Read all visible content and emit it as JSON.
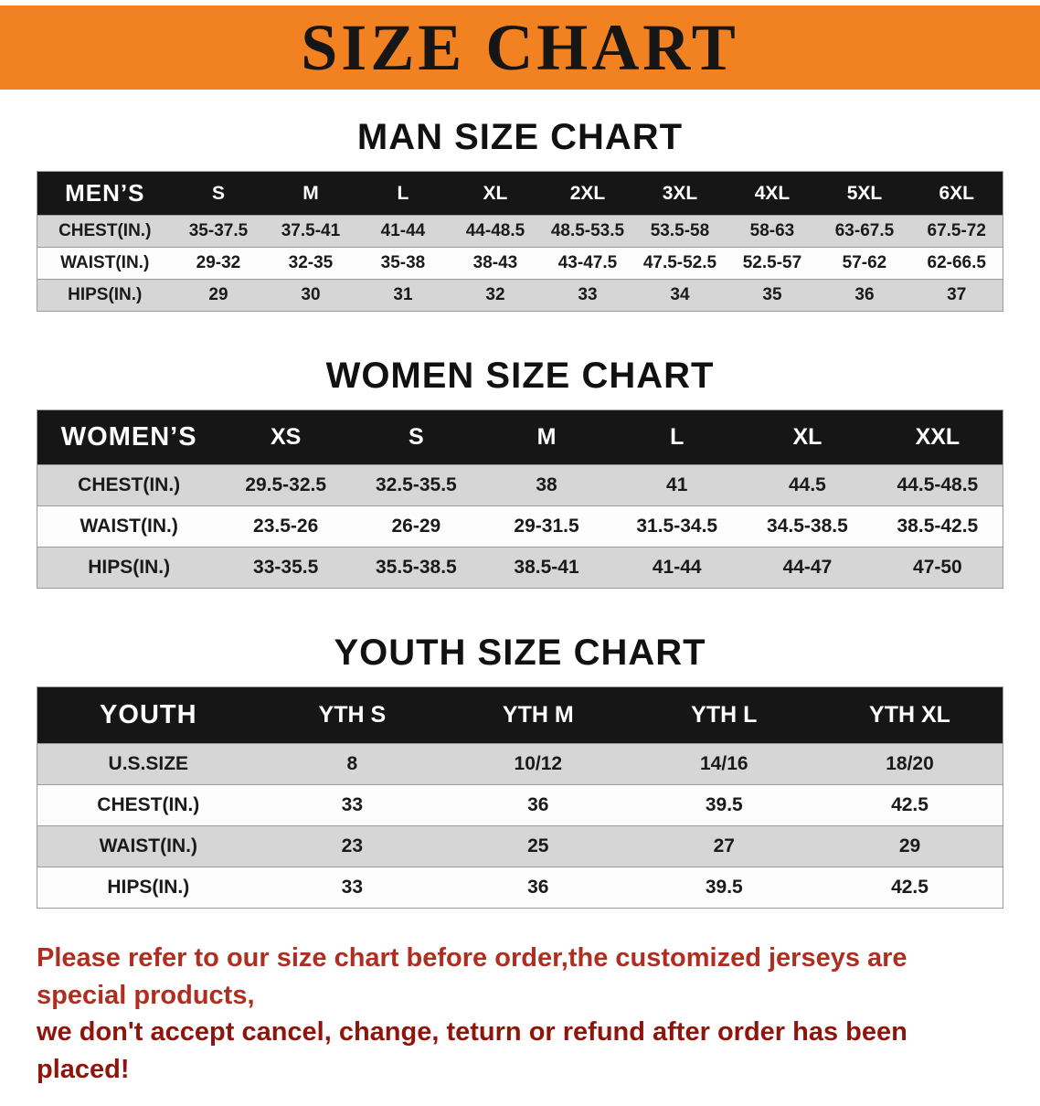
{
  "banner": {
    "title": "SIZE CHART"
  },
  "sections": [
    {
      "heading": "MAN SIZE CHART",
      "table": {
        "header": [
          "MEN’S",
          "S",
          "M",
          "L",
          "XL",
          "2XL",
          "3XL",
          "4XL",
          "5XL",
          "6XL"
        ],
        "rows": [
          {
            "label": "CHEST(IN.)",
            "values": [
              "35-37.5",
              "37.5-41",
              "41-44",
              "44-48.5",
              "48.5-53.5",
              "53.5-58",
              "58-63",
              "63-67.5",
              "67.5-72"
            ]
          },
          {
            "label": "WAIST(IN.)",
            "values": [
              "29-32",
              "32-35",
              "35-38",
              "38-43",
              "43-47.5",
              "47.5-52.5",
              "52.5-57",
              "57-62",
              "62-66.5"
            ]
          },
          {
            "label": "HIPS(IN.)",
            "values": [
              "29",
              "30",
              "31",
              "32",
              "33",
              "34",
              "35",
              "36",
              "37"
            ]
          }
        ]
      }
    },
    {
      "heading": "WOMEN SIZE CHART",
      "table": {
        "header": [
          "WOMEN’S",
          "XS",
          "S",
          "M",
          "L",
          "XL",
          "XXL"
        ],
        "rows": [
          {
            "label": "CHEST(IN.)",
            "values": [
              "29.5-32.5",
              "32.5-35.5",
              "38",
              "41",
              "44.5",
              "44.5-48.5"
            ]
          },
          {
            "label": "WAIST(IN.)",
            "values": [
              "23.5-26",
              "26-29",
              "29-31.5",
              "31.5-34.5",
              "34.5-38.5",
              "38.5-42.5"
            ]
          },
          {
            "label": "HIPS(IN.)",
            "values": [
              "33-35.5",
              "35.5-38.5",
              "38.5-41",
              "41-44",
              "44-47",
              "47-50"
            ]
          }
        ]
      }
    },
    {
      "heading": "YOUTH SIZE CHART",
      "table": {
        "header": [
          "YOUTH",
          "YTH S",
          "YTH M",
          "YTH L",
          "YTH XL"
        ],
        "rows": [
          {
            "label": "U.S.SIZE",
            "values": [
              "8",
              "10/12",
              "14/16",
              "18/20"
            ]
          },
          {
            "label": "CHEST(IN.)",
            "values": [
              "33",
              "36",
              "39.5",
              "42.5"
            ]
          },
          {
            "label": "WAIST(IN.)",
            "values": [
              "23",
              "25",
              "27",
              "29"
            ]
          },
          {
            "label": "HIPS(IN.)",
            "values": [
              "33",
              "36",
              "39.5",
              "42.5"
            ]
          }
        ]
      }
    }
  ],
  "footer": {
    "lines": [
      "Please refer to our size chart before order,the customized jerseys are special products,",
      "we don't accept cancel, change, teturn or refund after order has been placed!"
    ]
  },
  "colors": {
    "banner-bg": "#f28121",
    "header-bg": "#161616",
    "row-gray": "#d6d6d6",
    "row-white": "#fdfdfd",
    "footer-red-1": "#b02e20",
    "footer-red-2": "#8f150c"
  }
}
